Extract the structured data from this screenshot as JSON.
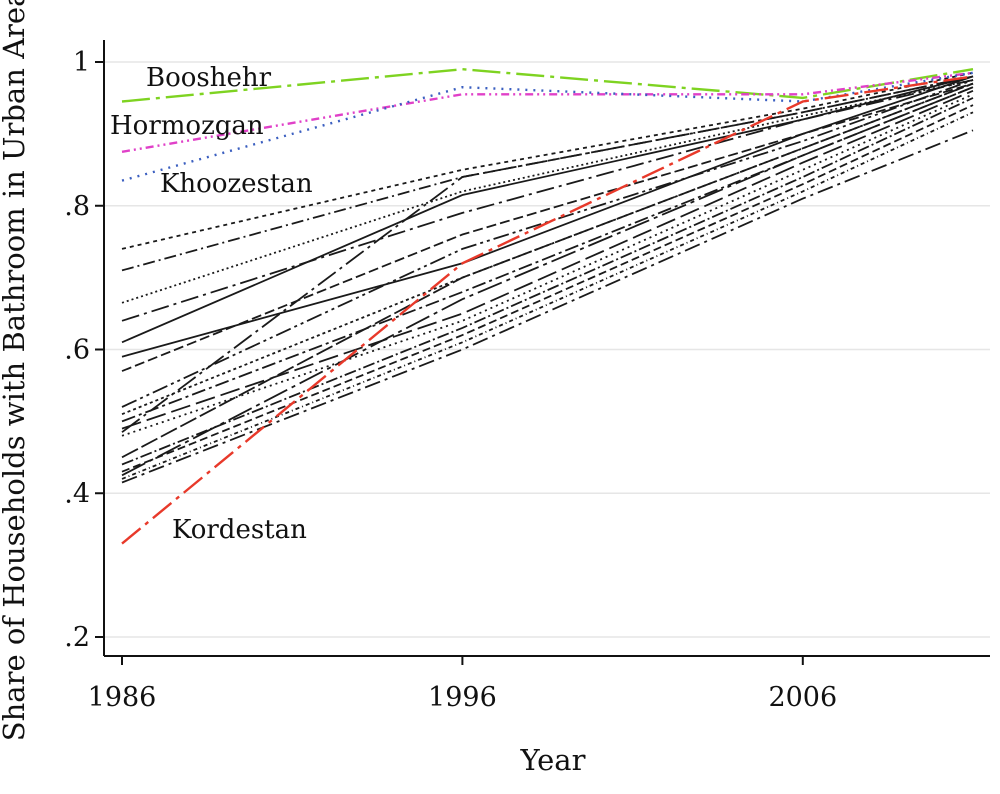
{
  "chart_data": {
    "type": "line",
    "xlabel": "Year",
    "ylabel": "Share of Households with Bathroom in Urban Areas",
    "xlim": [
      1986,
      2011
    ],
    "ylim": [
      0.2,
      1.0
    ],
    "x_ticks": [
      1986,
      1996,
      2006
    ],
    "x_tick_labels": [
      "1986",
      "1996",
      "2006"
    ],
    "y_ticks": [
      0.2,
      0.4,
      0.6,
      0.8,
      1.0
    ],
    "y_tick_labels": [
      ".2",
      ".4",
      ".6",
      ".8",
      "1"
    ],
    "grid": "horizontal",
    "x": [
      1986,
      1996,
      2006,
      2011
    ],
    "highlighted": [
      {
        "name": "Booshehr",
        "values": [
          0.945,
          0.99,
          0.95,
          0.99
        ],
        "color": "#7ed321",
        "dash": "28,6,4,6"
      },
      {
        "name": "Hormozgan",
        "values": [
          0.875,
          0.955,
          0.955,
          0.985
        ],
        "color": "#e040c8",
        "dash": "8,4,2,4,2,4"
      },
      {
        "name": "Khoozestan",
        "values": [
          0.835,
          0.965,
          0.945,
          0.985
        ],
        "color": "#3b5fc0",
        "dash": "2,6"
      },
      {
        "name": "Kordestan",
        "values": [
          0.33,
          0.72,
          0.945,
          0.98
        ],
        "color": "#e8392a",
        "dash": "24,6,4,6"
      }
    ],
    "series": [
      {
        "values": [
          0.74,
          0.85,
          0.935,
          0.985
        ],
        "dash": "4,4"
      },
      {
        "values": [
          0.71,
          0.84,
          0.93,
          0.98
        ],
        "dash": "12,4,2,4"
      },
      {
        "values": [
          0.665,
          0.82,
          0.925,
          0.975
        ],
        "dash": "2,3"
      },
      {
        "values": [
          0.64,
          0.79,
          0.92,
          0.975
        ],
        "dash": "18,5,3,5"
      },
      {
        "values": [
          0.61,
          0.815,
          0.92,
          0.98
        ],
        "dash": ""
      },
      {
        "values": [
          0.59,
          0.72,
          0.9,
          0.98
        ],
        "dash": ""
      },
      {
        "values": [
          0.57,
          0.76,
          0.9,
          0.97
        ],
        "dash": "10,4"
      },
      {
        "values": [
          0.52,
          0.74,
          0.89,
          0.975
        ],
        "dash": "16,4,3,4,3,4"
      },
      {
        "values": [
          0.51,
          0.7,
          0.88,
          0.97
        ],
        "dash": "3,3"
      },
      {
        "values": [
          0.5,
          0.68,
          0.87,
          0.965
        ],
        "dash": "14,4,3,4"
      },
      {
        "values": [
          0.49,
          0.65,
          0.86,
          0.96
        ],
        "dash": "20,6"
      },
      {
        "values": [
          0.485,
          0.84,
          0.93,
          0.98
        ],
        "dash": "22,5,3,5"
      },
      {
        "values": [
          0.48,
          0.64,
          0.85,
          0.955
        ],
        "dash": "2,4"
      },
      {
        "values": [
          0.45,
          0.7,
          0.88,
          0.97
        ],
        "dash": "18,4"
      },
      {
        "values": [
          0.44,
          0.63,
          0.84,
          0.95
        ],
        "dash": "12,3,2,3"
      },
      {
        "values": [
          0.43,
          0.62,
          0.83,
          0.94
        ],
        "dash": "8,4"
      },
      {
        "values": [
          0.425,
          0.67,
          0.87,
          0.965
        ],
        "dash": "26,5,4,5"
      },
      {
        "values": [
          0.42,
          0.61,
          0.82,
          0.93
        ],
        "dash": "4,3,1,3"
      },
      {
        "values": [
          0.415,
          0.6,
          0.81,
          0.905
        ],
        "dash": "16,5,3,5"
      }
    ],
    "annotations": [
      "Booshehr",
      "Hormozgan",
      "Khoozestan",
      "Kordestan"
    ]
  }
}
